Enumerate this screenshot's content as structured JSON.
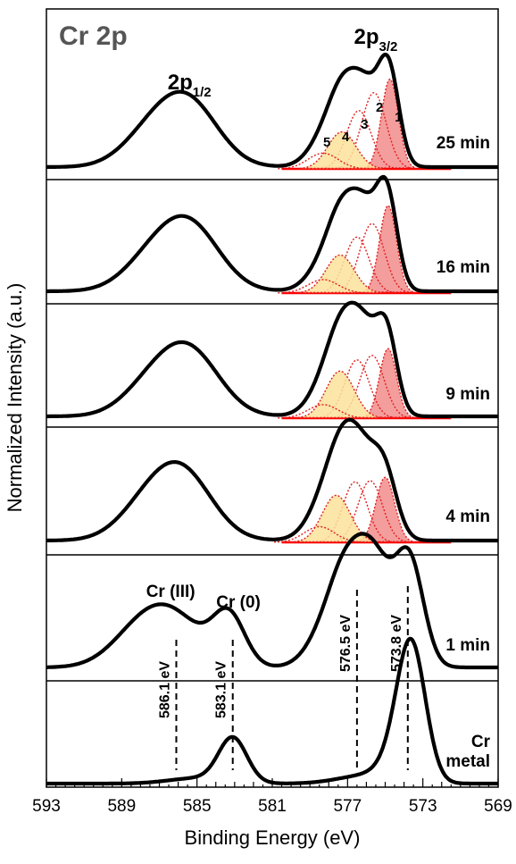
{
  "chart_data": {
    "type": "line",
    "panel_label": "Cr 2p",
    "xlabel": "Binding Energy (eV)",
    "ylabel": "Normalized Intensity (a.u.)",
    "xlim": [
      593,
      569
    ],
    "x_reversed": true,
    "x_ticks": [
      "593",
      "589",
      "585",
      "581",
      "577",
      "573",
      "569"
    ],
    "peak_labels": {
      "p12": {
        "main": "2p",
        "sub": "1/2",
        "x": 585.4
      },
      "p32": {
        "main": "2p",
        "sub": "3/2",
        "x": 575.5
      }
    },
    "series": [
      {
        "name": "25 min",
        "peak_fit": true,
        "peaks": [
          {
            "x": 585.5,
            "h": 0.56,
            "w": 1.6
          },
          {
            "x": 587.6,
            "h": 0.22,
            "w": 1.5
          },
          {
            "x": 574.8,
            "h": 0.78,
            "w": 0.55
          },
          {
            "x": 576.0,
            "h": 0.6,
            "w": 0.75
          },
          {
            "x": 577.2,
            "h": 0.5,
            "w": 0.75
          },
          {
            "x": 578.1,
            "h": 0.26,
            "w": 0.9
          }
        ],
        "components": [
          {
            "id": "1",
            "x": 574.75,
            "h": 0.8,
            "w": 0.45,
            "fill": "#f28c8c"
          },
          {
            "id": "2",
            "x": 575.6,
            "h": 0.68,
            "w": 0.65,
            "fill": "none"
          },
          {
            "id": "3",
            "x": 576.4,
            "h": 0.52,
            "w": 0.65,
            "fill": "none"
          },
          {
            "id": "4",
            "x": 577.3,
            "h": 0.33,
            "w": 0.75,
            "fill": "#fce29a"
          },
          {
            "id": "5",
            "x": 578.3,
            "h": 0.14,
            "w": 0.8,
            "fill": "none"
          }
        ]
      },
      {
        "name": "16 min",
        "peak_fit": true,
        "peaks": [
          {
            "x": 585.4,
            "h": 0.56,
            "w": 1.6
          },
          {
            "x": 587.5,
            "h": 0.22,
            "w": 1.5
          },
          {
            "x": 574.9,
            "h": 0.78,
            "w": 0.55
          },
          {
            "x": 576.1,
            "h": 0.64,
            "w": 0.75
          },
          {
            "x": 577.3,
            "h": 0.52,
            "w": 0.75
          },
          {
            "x": 578.2,
            "h": 0.22,
            "w": 0.9
          }
        ],
        "components": [
          {
            "id": "1",
            "x": 574.85,
            "h": 0.78,
            "w": 0.45,
            "fill": "#f28c8c"
          },
          {
            "id": "2",
            "x": 575.7,
            "h": 0.62,
            "w": 0.65,
            "fill": "none"
          },
          {
            "id": "3",
            "x": 576.5,
            "h": 0.5,
            "w": 0.65,
            "fill": "none"
          },
          {
            "id": "4",
            "x": 577.4,
            "h": 0.34,
            "w": 0.75,
            "fill": "#fce29a"
          },
          {
            "id": "5",
            "x": 578.3,
            "h": 0.12,
            "w": 0.8,
            "fill": "none"
          }
        ]
      },
      {
        "name": "9 min",
        "peak_fit": true,
        "peaks": [
          {
            "x": 585.4,
            "h": 0.55,
            "w": 1.6
          },
          {
            "x": 587.5,
            "h": 0.22,
            "w": 1.5
          },
          {
            "x": 574.9,
            "h": 0.62,
            "w": 0.55
          },
          {
            "x": 576.1,
            "h": 0.66,
            "w": 0.8
          },
          {
            "x": 577.3,
            "h": 0.58,
            "w": 0.8
          },
          {
            "x": 578.2,
            "h": 0.22,
            "w": 0.9
          }
        ],
        "components": [
          {
            "id": "1",
            "x": 574.85,
            "h": 0.62,
            "w": 0.45,
            "fill": "#f28c8c"
          },
          {
            "id": "2",
            "x": 575.7,
            "h": 0.56,
            "w": 0.65,
            "fill": "none"
          },
          {
            "id": "3",
            "x": 576.5,
            "h": 0.52,
            "w": 0.65,
            "fill": "none"
          },
          {
            "id": "4",
            "x": 577.4,
            "h": 0.42,
            "w": 0.75,
            "fill": "#fce29a"
          },
          {
            "id": "5",
            "x": 578.3,
            "h": 0.12,
            "w": 0.8,
            "fill": "none"
          }
        ]
      },
      {
        "name": "4 min",
        "peak_fit": true,
        "peaks": [
          {
            "x": 585.8,
            "h": 0.58,
            "w": 1.6
          },
          {
            "x": 587.8,
            "h": 0.22,
            "w": 1.5
          },
          {
            "x": 575.0,
            "h": 0.48,
            "w": 0.65
          },
          {
            "x": 576.3,
            "h": 0.66,
            "w": 0.9
          },
          {
            "x": 577.4,
            "h": 0.56,
            "w": 0.85
          },
          {
            "x": 578.4,
            "h": 0.2,
            "w": 0.9
          }
        ],
        "components": [
          {
            "id": "1",
            "x": 575.0,
            "h": 0.58,
            "w": 0.5,
            "fill": "#f28c8c"
          },
          {
            "id": "2",
            "x": 575.8,
            "h": 0.55,
            "w": 0.65,
            "fill": "none"
          },
          {
            "id": "3",
            "x": 576.6,
            "h": 0.54,
            "w": 0.65,
            "fill": "none"
          },
          {
            "id": "4",
            "x": 577.6,
            "h": 0.42,
            "w": 0.75,
            "fill": "#fce29a"
          },
          {
            "id": "5",
            "x": 578.5,
            "h": 0.14,
            "w": 0.8,
            "fill": "none"
          }
        ]
      },
      {
        "name": "1 min",
        "peak_fit": false,
        "peaks": [
          {
            "x": 586.4,
            "h": 0.36,
            "w": 1.7
          },
          {
            "x": 588.3,
            "h": 0.15,
            "w": 1.5
          },
          {
            "x": 583.3,
            "h": 0.34,
            "w": 0.85
          },
          {
            "x": 573.7,
            "h": 0.72,
            "w": 0.75
          },
          {
            "x": 575.6,
            "h": 0.72,
            "w": 0.95
          },
          {
            "x": 577.1,
            "h": 0.52,
            "w": 0.9
          },
          {
            "x": 578.2,
            "h": 0.2,
            "w": 1.0
          }
        ],
        "components": []
      },
      {
        "name": "Cr\nmetal",
        "peak_fit": false,
        "peaks": [
          {
            "x": 583.1,
            "h": 0.33,
            "w": 0.75
          },
          {
            "x": 573.6,
            "h": 0.95,
            "w": 0.75
          },
          {
            "x": 574.3,
            "h": 0.15,
            "w": 0.9
          },
          {
            "x": 585.0,
            "h": 0.04,
            "w": 1.5
          },
          {
            "x": 576.0,
            "h": 0.06,
            "w": 1.5
          }
        ],
        "components": []
      }
    ],
    "reference_lines": [
      {
        "label": "586.1 eV",
        "x": 586.1
      },
      {
        "label": "583.1 eV",
        "x": 583.1
      },
      {
        "label": "576.5 eV",
        "x": 576.5
      },
      {
        "label": "573.8 eV",
        "x": 573.8
      }
    ],
    "species_labels": [
      {
        "label": "Cr (III)",
        "x": 586.4
      },
      {
        "label": "Cr (0)",
        "x": 582.8
      }
    ],
    "colors": {
      "curve": "#000000",
      "fit_component": "#e01e1e",
      "baseline": "#ff0000",
      "title": "#555555"
    }
  }
}
